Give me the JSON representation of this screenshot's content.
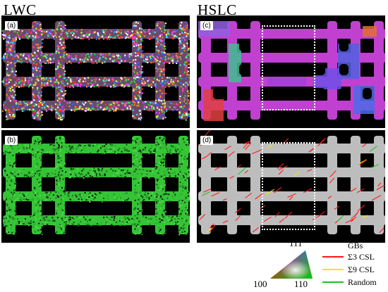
{
  "columns": {
    "left_title": "LWC",
    "right_title": "HSLC"
  },
  "panels": {
    "a": "(a)",
    "b": "(b)",
    "c": "(c)",
    "d": "(d)"
  },
  "legend": {
    "ipf": {
      "top": "111",
      "left": "100",
      "right": "110",
      "colors": {
        "100": "#ff0000",
        "110": "#00cc00",
        "111": "#3050ff"
      }
    },
    "gb_title": "GBs",
    "gb_items": [
      {
        "label": "Σ3 CSL",
        "color": "#ff1a1a"
      },
      {
        "label": "Σ9 CSL",
        "color": "#f2e600"
      },
      {
        "label": "Random",
        "color": "#22c022"
      }
    ]
  },
  "colors": {
    "background": "#000000",
    "lattice_green": "#35c436",
    "lattice_grey": "#bdbdbd",
    "roi_border": "#ffffff"
  }
}
